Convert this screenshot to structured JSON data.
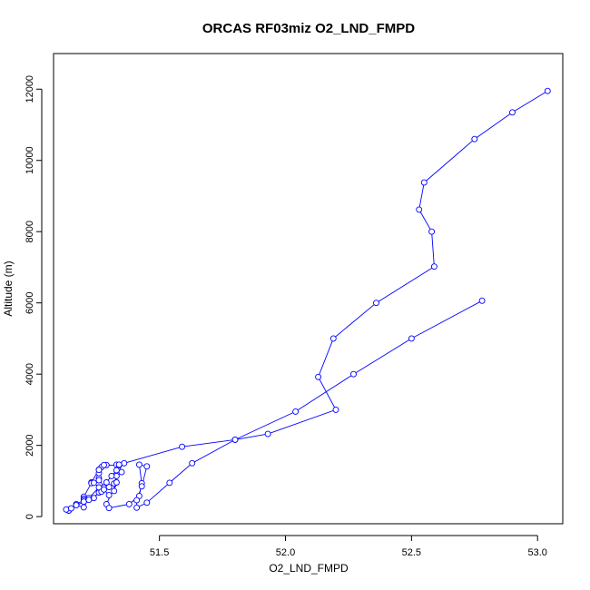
{
  "chart_data": {
    "type": "line",
    "title": "ORCAS RF03miz O2_LND_FMPD",
    "xlabel": "O2_LND_FMPD",
    "ylabel": "Altitude (m)",
    "xlim": [
      51.08,
      53.1
    ],
    "ylim": [
      -200,
      13000
    ],
    "x_ticks": [
      51.5,
      52.0,
      52.5,
      53.0
    ],
    "x_tick_labels": [
      "51.5",
      "52.0",
      "52.5",
      "53.0"
    ],
    "y_ticks": [
      0,
      2000,
      4000,
      6000,
      8000,
      10000,
      12000
    ],
    "y_tick_labels": [
      "0",
      "2000",
      "4000",
      "6000",
      "8000",
      "10000",
      "12000"
    ],
    "grid": false,
    "legend": "none",
    "series": [
      {
        "color": "#0000ff",
        "marker": "open-circle",
        "points": [
          [
            53.04,
            11950
          ],
          [
            52.9,
            11350
          ],
          [
            52.75,
            10600
          ],
          [
            52.55,
            9380
          ],
          [
            52.53,
            8620
          ],
          [
            52.58,
            8000
          ],
          [
            52.59,
            7020
          ],
          [
            52.36,
            6000
          ],
          [
            52.19,
            5000
          ],
          [
            52.13,
            3920
          ],
          [
            52.2,
            3000
          ],
          [
            51.93,
            2320
          ],
          [
            51.8,
            2160
          ],
          [
            51.59,
            1960
          ],
          [
            51.36,
            1500
          ],
          [
            51.33,
            1460
          ],
          [
            51.34,
            1440
          ],
          [
            51.29,
            1450
          ],
          [
            51.27,
            1390
          ],
          [
            51.26,
            1320
          ],
          [
            51.23,
            960
          ],
          [
            51.23,
            940
          ],
          [
            51.2,
            560
          ],
          [
            51.2,
            500
          ],
          [
            51.2,
            460
          ],
          [
            51.17,
            350
          ],
          [
            51.14,
            190
          ],
          [
            51.14,
            170
          ],
          [
            51.13,
            200
          ],
          [
            51.15,
            230
          ],
          [
            51.2,
            420
          ],
          [
            51.24,
            520
          ],
          [
            51.26,
            680
          ],
          [
            51.28,
            820
          ],
          [
            51.26,
            1080
          ],
          [
            51.26,
            1220
          ],
          [
            51.28,
            1450
          ],
          [
            51.26,
            1310
          ],
          [
            51.26,
            1020
          ],
          [
            51.24,
            950
          ],
          [
            51.26,
            820
          ],
          [
            51.22,
            520
          ],
          [
            51.2,
            260
          ],
          [
            51.17,
            320
          ],
          [
            51.22,
            470
          ],
          [
            51.27,
            700
          ],
          [
            51.3,
            830
          ],
          [
            51.32,
            930
          ],
          [
            51.33,
            1140
          ],
          [
            51.35,
            1250
          ],
          [
            51.34,
            1460
          ],
          [
            51.33,
            1300
          ],
          [
            51.31,
            1140
          ],
          [
            51.29,
            960
          ],
          [
            51.28,
            760
          ],
          [
            51.3,
            600
          ],
          [
            51.32,
            720
          ],
          [
            51.33,
            960
          ],
          [
            51.29,
            350
          ],
          [
            51.3,
            240
          ],
          [
            51.38,
            350
          ],
          [
            51.42,
            580
          ],
          [
            51.43,
            940
          ],
          [
            51.42,
            1460
          ],
          [
            51.45,
            1410
          ],
          [
            51.43,
            850
          ],
          [
            51.41,
            460
          ],
          [
            51.41,
            250
          ],
          [
            51.45,
            390
          ],
          [
            51.54,
            950
          ],
          [
            51.63,
            1500
          ],
          [
            51.8,
            2160
          ],
          [
            52.04,
            2950
          ],
          [
            52.27,
            4000
          ],
          [
            52.5,
            5000
          ],
          [
            52.78,
            6060
          ]
        ]
      }
    ]
  }
}
